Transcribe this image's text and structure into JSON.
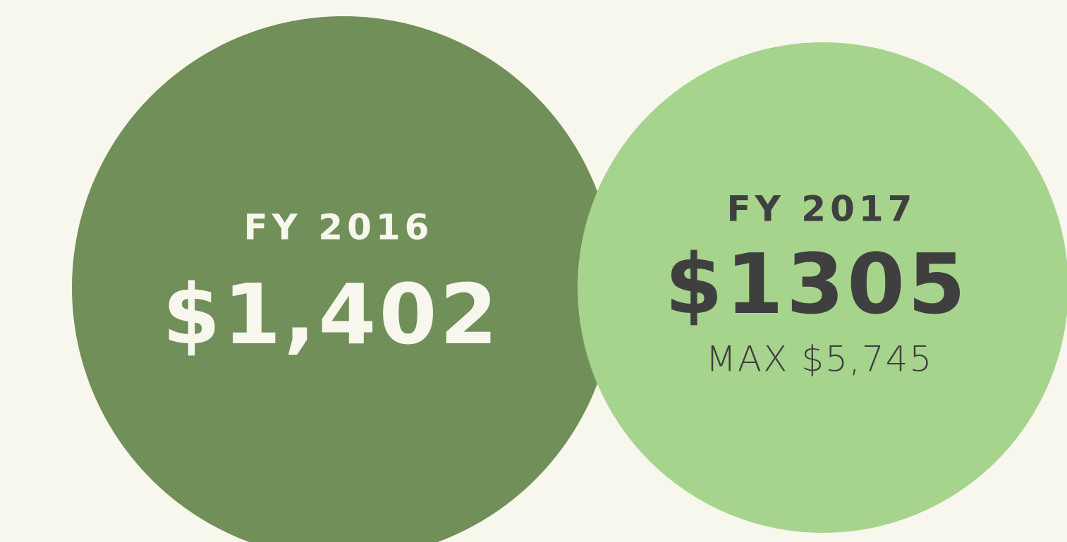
{
  "circles": [
    {
      "label": "FY 2016",
      "value": "$1,402"
    },
    {
      "label": "FY 2017",
      "value": "$1305",
      "note": "MAX $5,745"
    }
  ]
}
